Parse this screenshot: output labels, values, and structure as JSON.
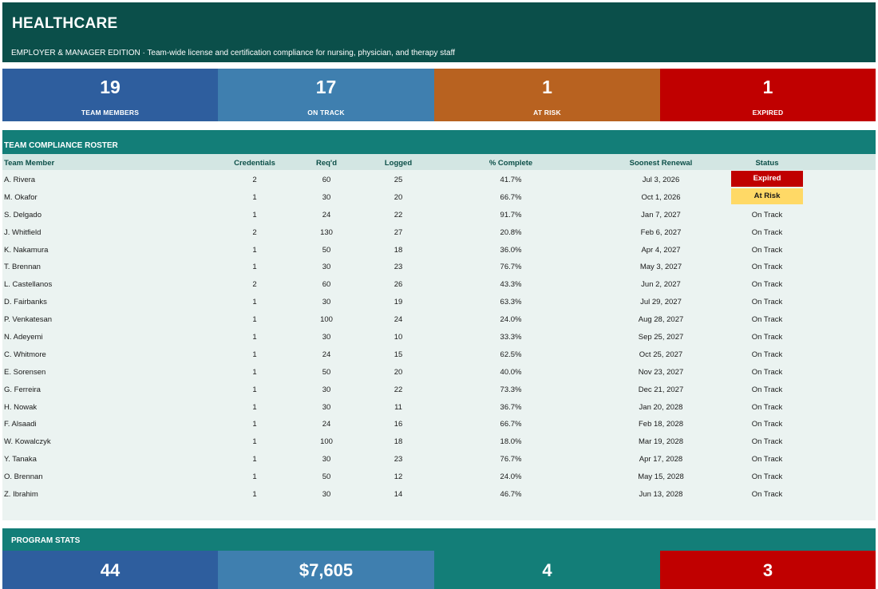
{
  "header": {
    "title": "HEALTHCARE",
    "subtitle": "EMPLOYER & MANAGER EDITION  ·  Team-wide license and certification compliance for nursing, physician, and therapy staff"
  },
  "kpis": [
    {
      "value": "19",
      "label": "TEAM MEMBERS",
      "color": "#2e5e9e"
    },
    {
      "value": "17",
      "label": "ON TRACK",
      "color": "#3f7faf"
    },
    {
      "value": "1",
      "label": "AT RISK",
      "color": "#b86220"
    },
    {
      "value": "1",
      "label": "EXPIRED",
      "color": "#c00000"
    }
  ],
  "roster": {
    "title": "TEAM COMPLIANCE ROSTER",
    "columns": {
      "name": "Team Member",
      "credentials": "Credentials",
      "required": "Req'd",
      "logged": "Logged",
      "pct": "% Complete",
      "renewal": "Soonest Renewal",
      "status": "Status"
    },
    "rows": [
      {
        "name": "A. Rivera",
        "credentials": "2",
        "required": "60",
        "logged": "25",
        "pct": "41.7%",
        "renewal": "Jul 3, 2026",
        "status": "Expired"
      },
      {
        "name": "M. Okafor",
        "credentials": "1",
        "required": "30",
        "logged": "20",
        "pct": "66.7%",
        "renewal": "Oct 1, 2026",
        "status": "At Risk"
      },
      {
        "name": "S. Delgado",
        "credentials": "1",
        "required": "24",
        "logged": "22",
        "pct": "91.7%",
        "renewal": "Jan 7, 2027",
        "status": "On Track"
      },
      {
        "name": "J. Whitfield",
        "credentials": "2",
        "required": "130",
        "logged": "27",
        "pct": "20.8%",
        "renewal": "Feb 6, 2027",
        "status": "On Track"
      },
      {
        "name": "K. Nakamura",
        "credentials": "1",
        "required": "50",
        "logged": "18",
        "pct": "36.0%",
        "renewal": "Apr 4, 2027",
        "status": "On Track"
      },
      {
        "name": "T. Brennan",
        "credentials": "1",
        "required": "30",
        "logged": "23",
        "pct": "76.7%",
        "renewal": "May 3, 2027",
        "status": "On Track"
      },
      {
        "name": "L. Castellanos",
        "credentials": "2",
        "required": "60",
        "logged": "26",
        "pct": "43.3%",
        "renewal": "Jun 2, 2027",
        "status": "On Track"
      },
      {
        "name": "D. Fairbanks",
        "credentials": "1",
        "required": "30",
        "logged": "19",
        "pct": "63.3%",
        "renewal": "Jul 29, 2027",
        "status": "On Track"
      },
      {
        "name": "P. Venkatesan",
        "credentials": "1",
        "required": "100",
        "logged": "24",
        "pct": "24.0%",
        "renewal": "Aug 28, 2027",
        "status": "On Track"
      },
      {
        "name": "N. Adeyemi",
        "credentials": "1",
        "required": "30",
        "logged": "10",
        "pct": "33.3%",
        "renewal": "Sep 25, 2027",
        "status": "On Track"
      },
      {
        "name": "C. Whitmore",
        "credentials": "1",
        "required": "24",
        "logged": "15",
        "pct": "62.5%",
        "renewal": "Oct 25, 2027",
        "status": "On Track"
      },
      {
        "name": "E. Sorensen",
        "credentials": "1",
        "required": "50",
        "logged": "20",
        "pct": "40.0%",
        "renewal": "Nov 23, 2027",
        "status": "On Track"
      },
      {
        "name": "G. Ferreira",
        "credentials": "1",
        "required": "30",
        "logged": "22",
        "pct": "73.3%",
        "renewal": "Dec 21, 2027",
        "status": "On Track"
      },
      {
        "name": "H. Nowak",
        "credentials": "1",
        "required": "30",
        "logged": "11",
        "pct": "36.7%",
        "renewal": "Jan 20, 2028",
        "status": "On Track"
      },
      {
        "name": "F. Alsaadi",
        "credentials": "1",
        "required": "24",
        "logged": "16",
        "pct": "66.7%",
        "renewal": "Feb 18, 2028",
        "status": "On Track"
      },
      {
        "name": "W. Kowalczyk",
        "credentials": "1",
        "required": "100",
        "logged": "18",
        "pct": "18.0%",
        "renewal": "Mar 19, 2028",
        "status": "On Track"
      },
      {
        "name": "Y. Tanaka",
        "credentials": "1",
        "required": "30",
        "logged": "23",
        "pct": "76.7%",
        "renewal": "Apr 17, 2028",
        "status": "On Track"
      },
      {
        "name": "O. Brennan",
        "credentials": "1",
        "required": "50",
        "logged": "12",
        "pct": "24.0%",
        "renewal": "May 15, 2028",
        "status": "On Track"
      },
      {
        "name": "Z. Ibrahim",
        "credentials": "1",
        "required": "30",
        "logged": "14",
        "pct": "46.7%",
        "renewal": "Jun 13, 2028",
        "status": "On Track"
      }
    ]
  },
  "program_stats": {
    "title": "PROGRAM STATS",
    "values": [
      {
        "value": "44",
        "color": "#2e5e9e"
      },
      {
        "value": "$7,605",
        "color": "#3f7faf"
      },
      {
        "value": "4",
        "color": "#137e78"
      },
      {
        "value": "3",
        "color": "#c00000"
      }
    ]
  },
  "colors": {
    "header_bg": "#0b4f4a",
    "section_bar": "#137e78",
    "expired_badge": "#c00000",
    "at_risk_badge": "#ffd966"
  }
}
